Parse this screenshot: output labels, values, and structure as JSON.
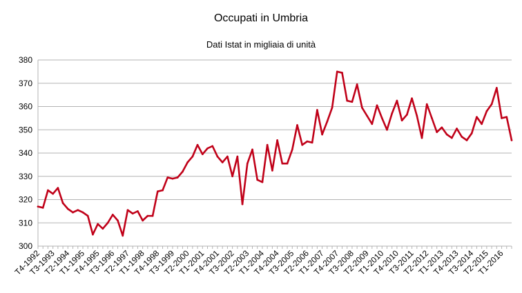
{
  "chart_data": {
    "type": "line",
    "title": "Occupati in Umbria",
    "subtitle": "Dati Istat in migliaia di unità",
    "xlabel": "",
    "ylabel": "",
    "ylim": [
      300,
      380
    ],
    "yticks": [
      300,
      310,
      320,
      330,
      340,
      350,
      360,
      370,
      380
    ],
    "grid": "horizontal",
    "legend": "none",
    "line_color": "#c00018",
    "grid_color": "#b3b3b3",
    "x_tick_labels": [
      "T4-1992",
      "T3-1993",
      "T2-1994",
      "T1-1995",
      "T4-1995",
      "T3-1996",
      "T2-1997",
      "T1-1998",
      "T4-1998",
      "T3-1999",
      "T2-2000",
      "T1-2001",
      "T4-2001",
      "T3-2002",
      "T2-2003",
      "T1-2004",
      "T4-2004",
      "T3-2005",
      "T2-2006",
      "T1-2007",
      "T4-2007",
      "T3-2008",
      "T2-2009",
      "T1-2010",
      "T4-2010",
      "T3-2011",
      "T2-2012",
      "T1-2013",
      "T4-2013",
      "T3-2014",
      "T2-2015",
      "T1-2016"
    ],
    "series": [
      {
        "values": [
          317,
          316.5,
          324,
          322.5,
          325,
          318.5,
          316,
          314.5,
          315.5,
          314.5,
          313,
          305,
          309.5,
          307.5,
          310,
          313.5,
          311,
          304.5,
          315.5,
          314,
          315,
          311,
          313,
          313,
          323.5,
          324,
          329.5,
          329,
          329.5,
          332,
          336,
          338.5,
          343.5,
          339.5,
          342,
          343,
          338.5,
          336,
          338.5,
          330,
          338.5,
          318,
          335.5,
          341.5,
          328.5,
          327.5,
          343.5,
          332.5,
          345.5,
          335.5,
          335.5,
          341.5,
          352,
          343.5,
          345,
          344.5,
          358.5,
          348,
          353.5,
          359.5,
          375,
          374.5,
          362.5,
          362,
          369.5,
          359.5,
          356,
          352.5,
          360.5,
          355,
          350,
          357,
          362.5,
          354,
          356.5,
          363.5,
          356,
          346.5,
          361,
          355,
          349,
          351,
          348,
          346.5,
          350.5,
          347,
          345.5,
          348.5,
          355.5,
          352.5,
          358,
          361,
          368,
          355,
          355.5,
          345.5
        ]
      }
    ]
  }
}
